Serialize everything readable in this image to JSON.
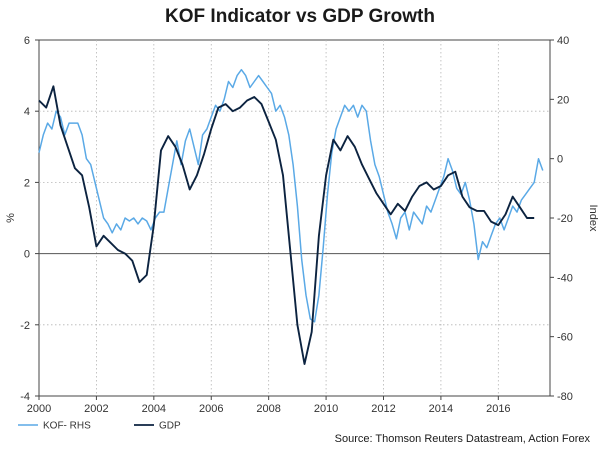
{
  "chart_data": {
    "type": "line",
    "title": "KOF Indicator vs GDP Growth",
    "xlabel": "",
    "ylabel_left": "%",
    "ylabel_right": "Index",
    "xlim": [
      2000,
      2017.8
    ],
    "ylim_left": [
      -4,
      6
    ],
    "ylim_right": [
      -80,
      40
    ],
    "xticks": [
      2000,
      2002,
      2004,
      2006,
      2008,
      2010,
      2012,
      2014,
      2016
    ],
    "xtick_labels": [
      "2000",
      "2002",
      "2004",
      "2006",
      "2008",
      "2010",
      "2012",
      "2014",
      "2016"
    ],
    "yticks_left": [
      -4,
      -2,
      0,
      2,
      4,
      6
    ],
    "ytick_labels_left": [
      "-4",
      "-2",
      "0",
      "2",
      "4",
      "6"
    ],
    "yticks_right": [
      -80,
      -60,
      -40,
      -20,
      0,
      20,
      40
    ],
    "ytick_labels_right": [
      "-80",
      "-60",
      "-40",
      "-20",
      "0",
      "20",
      "40"
    ],
    "grid": true,
    "legend_position": "bottom-left",
    "source": "Source: Thomson Reuters Datastream, Action Forex",
    "series": [
      {
        "name": "KOF- RHS",
        "axis": "right",
        "color": "#5aa9e6",
        "x": [
          2000.0,
          2000.15,
          2000.3,
          2000.45,
          2000.6,
          2000.75,
          2000.9,
          2001.05,
          2001.2,
          2001.35,
          2001.5,
          2001.65,
          2001.8,
          2001.95,
          2002.1,
          2002.25,
          2002.4,
          2002.55,
          2002.7,
          2002.85,
          2003.0,
          2003.15,
          2003.3,
          2003.45,
          2003.6,
          2003.75,
          2003.9,
          2004.05,
          2004.2,
          2004.35,
          2004.5,
          2004.65,
          2004.8,
          2004.95,
          2005.1,
          2005.25,
          2005.4,
          2005.55,
          2005.7,
          2005.85,
          2006.0,
          2006.15,
          2006.3,
          2006.45,
          2006.6,
          2006.75,
          2006.9,
          2007.05,
          2007.2,
          2007.35,
          2007.5,
          2007.65,
          2007.8,
          2007.95,
          2008.1,
          2008.25,
          2008.4,
          2008.55,
          2008.7,
          2008.85,
          2009.0,
          2009.15,
          2009.3,
          2009.45,
          2009.6,
          2009.75,
          2009.9,
          2010.05,
          2010.2,
          2010.35,
          2010.5,
          2010.65,
          2010.8,
          2010.95,
          2011.1,
          2011.25,
          2011.4,
          2011.55,
          2011.7,
          2011.85,
          2012.0,
          2012.15,
          2012.3,
          2012.45,
          2012.6,
          2012.75,
          2012.9,
          2013.05,
          2013.2,
          2013.35,
          2013.5,
          2013.65,
          2013.8,
          2013.95,
          2014.1,
          2014.25,
          2014.4,
          2014.55,
          2014.7,
          2014.85,
          2015.0,
          2015.15,
          2015.3,
          2015.45,
          2015.6,
          2015.75,
          2015.9,
          2016.05,
          2016.2,
          2016.35,
          2016.5,
          2016.65,
          2016.8,
          2016.95,
          2017.1,
          2017.25,
          2017.4,
          2017.55
        ],
        "values": [
          2,
          8,
          12,
          10,
          16,
          14,
          8,
          12,
          12,
          12,
          8,
          0,
          -2,
          -8,
          -14,
          -20,
          -22,
          -25,
          -22,
          -24,
          -20,
          -21,
          -20,
          -22,
          -20,
          -21,
          -24,
          -20,
          -18,
          -18,
          -10,
          -2,
          6,
          -2,
          6,
          10,
          4,
          -2,
          8,
          10,
          14,
          18,
          16,
          20,
          26,
          24,
          28,
          30,
          28,
          24,
          26,
          28,
          26,
          24,
          22,
          16,
          18,
          14,
          8,
          -2,
          -16,
          -34,
          -46,
          -54,
          -55,
          -46,
          -30,
          -12,
          2,
          10,
          14,
          18,
          16,
          18,
          14,
          18,
          16,
          6,
          -2,
          -6,
          -12,
          -18,
          -22,
          -27,
          -20,
          -18,
          -24,
          -18,
          -20,
          -22,
          -16,
          -18,
          -14,
          -10,
          -6,
          0,
          -4,
          -10,
          -12,
          -8,
          -14,
          -22,
          -34,
          -28,
          -30,
          -26,
          -22,
          -20,
          -24,
          -20,
          -16,
          -18,
          -14,
          -12,
          -10,
          -8,
          0,
          -4
        ]
      },
      {
        "name": "GDP",
        "axis": "left",
        "color": "#0c2340",
        "x": [
          2000.0,
          2000.25,
          2000.5,
          2000.75,
          2001.0,
          2001.25,
          2001.5,
          2001.75,
          2002.0,
          2002.25,
          2002.5,
          2002.75,
          2003.0,
          2003.25,
          2003.5,
          2003.75,
          2004.0,
          2004.25,
          2004.5,
          2004.75,
          2005.0,
          2005.25,
          2005.5,
          2005.75,
          2006.0,
          2006.25,
          2006.5,
          2006.75,
          2007.0,
          2007.25,
          2007.5,
          2007.75,
          2008.0,
          2008.25,
          2008.5,
          2008.75,
          2009.0,
          2009.25,
          2009.5,
          2009.75,
          2010.0,
          2010.25,
          2010.5,
          2010.75,
          2011.0,
          2011.25,
          2011.5,
          2011.75,
          2012.0,
          2012.25,
          2012.5,
          2012.75,
          2013.0,
          2013.25,
          2013.5,
          2013.75,
          2014.0,
          2014.25,
          2014.5,
          2014.75,
          2015.0,
          2015.25,
          2015.5,
          2015.75,
          2016.0,
          2016.25,
          2016.5,
          2016.75,
          2017.0,
          2017.25
        ],
        "values": [
          4.3,
          4.1,
          4.7,
          3.6,
          3.0,
          2.4,
          2.2,
          1.3,
          0.2,
          0.5,
          0.3,
          0.1,
          0.0,
          -0.2,
          -0.8,
          -0.6,
          0.8,
          2.9,
          3.3,
          3.0,
          2.5,
          1.8,
          2.2,
          2.8,
          3.5,
          4.1,
          4.2,
          4.0,
          4.1,
          4.3,
          4.4,
          4.2,
          3.7,
          3.2,
          2.2,
          0.1,
          -2.0,
          -3.1,
          -2.2,
          0.5,
          2.2,
          3.2,
          2.9,
          3.3,
          3.0,
          2.5,
          2.1,
          1.7,
          1.4,
          1.1,
          1.4,
          1.2,
          1.6,
          1.9,
          2.0,
          1.8,
          1.9,
          2.2,
          2.3,
          1.6,
          1.3,
          1.2,
          1.2,
          0.9,
          0.8,
          1.1,
          1.6,
          1.3,
          1.0,
          1.0
        ]
      }
    ]
  }
}
